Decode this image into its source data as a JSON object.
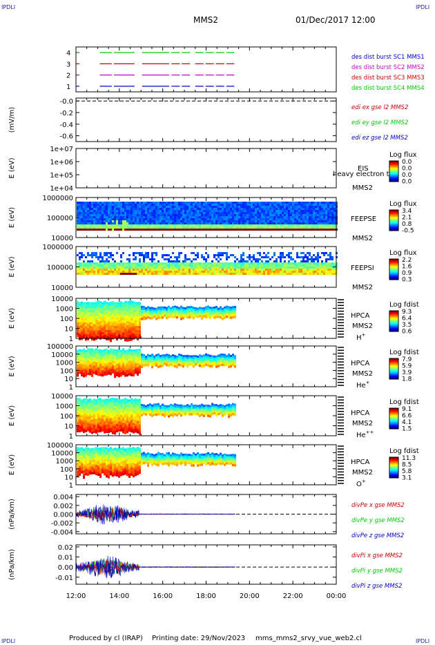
{
  "corner_logo": "IPDLI",
  "header": {
    "spacecraft": "MMS2",
    "datetime": "01/Dec/2017 12:00"
  },
  "footer": {
    "produced": "Produced by cl (IRAP)",
    "printing": "Printing date: 29/Nov/2023",
    "filename": "mms_mms2_srvy_vue_web2.cl"
  },
  "colors": {
    "blue": "#0000cc",
    "red": "#cc0000",
    "green": "#00cc00",
    "magenta": "#cc00cc",
    "black": "#000000"
  },
  "chart_data": [
    {
      "type": "line",
      "name": "burst-availability",
      "yticks": [
        "4",
        "3",
        "2",
        "1"
      ],
      "ylim": [
        0.5,
        4.5
      ],
      "x_hours_range": [
        12,
        24
      ],
      "series": [
        {
          "name": "des dist burst SC1 MMS1",
          "color": "#0000cc",
          "y": 1,
          "intervals": [
            [
              13.1,
              13.65
            ],
            [
              13.75,
              14.7
            ],
            [
              15.05,
              16.3
            ],
            [
              16.4,
              17.3
            ],
            [
              17.5,
              19.3
            ]
          ]
        },
        {
          "name": "des dist burst SC2 MMS2",
          "color": "#cc00cc",
          "y": 2,
          "intervals": [
            [
              13.1,
              13.65
            ],
            [
              13.75,
              14.7
            ],
            [
              15.05,
              16.3
            ],
            [
              16.4,
              17.3
            ],
            [
              17.5,
              19.3
            ]
          ]
        },
        {
          "name": "des dist burst SC3 MMS3",
          "color": "#cc0000",
          "y": 3,
          "intervals": [
            [
              13.1,
              13.65
            ],
            [
              13.75,
              14.7
            ],
            [
              15.05,
              16.3
            ],
            [
              16.4,
              17.3
            ],
            [
              17.5,
              19.3
            ]
          ]
        },
        {
          "name": "des dist burst SC4 MMS4",
          "color": "#00cc00",
          "y": 4,
          "intervals": [
            [
              13.1,
              13.65
            ],
            [
              13.75,
              14.7
            ],
            [
              15.05,
              16.3
            ],
            [
              16.4,
              17.3
            ],
            [
              17.5,
              19.3
            ]
          ]
        }
      ]
    },
    {
      "type": "line",
      "name": "edi-e-field",
      "ylabel": "(mV/m)",
      "yticks": [
        "-0.0",
        "-0.2",
        "-0.4",
        "-0.6"
      ],
      "ylim": [
        -0.7,
        0.05
      ],
      "series": [
        {
          "name": "edi ex gse l2 MMS2",
          "color": "#cc0000"
        },
        {
          "name": "edi ey gse l2 MMS2",
          "color": "#00cc00"
        },
        {
          "name": "edi ez gse l2 MMS2",
          "color": "#0000cc"
        }
      ]
    },
    {
      "type": "heatmap",
      "name": "eis-spectrogram",
      "ylabel": "E (eV)",
      "yticks": [
        "1e+07",
        "1e+06",
        "1e+05",
        "1e+04"
      ],
      "label_lines": [
        "EIS",
        "MMS2"
      ],
      "overlay_text": "heavy electron to",
      "colorbar": {
        "title": "Log flux",
        "ticks": [
          "0.0",
          "0.0",
          "0.0",
          "0.0"
        ]
      }
    },
    {
      "type": "heatmap",
      "name": "feeps-electron-spectrogram",
      "ylabel": "E (eV)",
      "yticks": [
        "1000000",
        "100000",
        "10000"
      ],
      "label_lines": [
        "FEEPSE",
        "MMS2"
      ],
      "colorbar": {
        "title": "Log flux",
        "ticks": [
          "3.4",
          "2.1",
          "0.8",
          "-0.5"
        ]
      }
    },
    {
      "type": "heatmap",
      "name": "feeps-ion-spectrogram",
      "ylabel": "E (eV)",
      "yticks": [
        "1000000",
        "100000",
        "10000"
      ],
      "label_lines": [
        "FEEPSI",
        "MMS2"
      ],
      "colorbar": {
        "title": "Log flux",
        "ticks": [
          "2.2",
          "1.6",
          "0.9",
          "0.3"
        ]
      }
    },
    {
      "type": "heatmap",
      "name": "hpca-h-spectrogram",
      "ylabel": "E (eV)",
      "yticks": [
        "10000",
        "1000",
        "100",
        "10",
        "1"
      ],
      "label_lines": [
        "HPCA",
        "MMS2"
      ],
      "species": "H",
      "species_sup": "+",
      "colorbar": {
        "title": "Log fdist",
        "ticks": [
          "9.3",
          "6.4",
          "3.5",
          "0.6"
        ]
      }
    },
    {
      "type": "heatmap",
      "name": "hpca-he-spectrogram",
      "ylabel": "E (eV)",
      "yticks": [
        "100000",
        "10000",
        "1000",
        "100",
        "10",
        "1"
      ],
      "label_lines": [
        "HPCA",
        "MMS2"
      ],
      "species": "He",
      "species_sup": "+",
      "colorbar": {
        "title": "Log fdist",
        "ticks": [
          "7.9",
          "5.9",
          "3.9",
          "1.8"
        ]
      }
    },
    {
      "type": "heatmap",
      "name": "hpca-he2-spectrogram",
      "ylabel": "E (eV)",
      "yticks": [
        "10000",
        "1000",
        "100",
        "10",
        "1"
      ],
      "label_lines": [
        "HPCA",
        "MMS2"
      ],
      "species": "He",
      "species_sup": "++",
      "colorbar": {
        "title": "Log fdist",
        "ticks": [
          "9.1",
          "6.6",
          "4.1",
          "1.5"
        ]
      }
    },
    {
      "type": "heatmap",
      "name": "hpca-o-spectrogram",
      "ylabel": "E (eV)",
      "yticks": [
        "100000",
        "10000",
        "1000",
        "100",
        "10",
        "1"
      ],
      "label_lines": [
        "HPCA",
        "MMS2"
      ],
      "species": "O",
      "species_sup": "+",
      "colorbar": {
        "title": "Log fdist",
        "ticks": [
          "11.3",
          "8.5",
          "5.8",
          "3.1"
        ]
      }
    },
    {
      "type": "line",
      "name": "div-pe",
      "ylabel": "(nPa/km)",
      "yticks": [
        "0.004",
        "0.002",
        "0.000",
        "-0.002",
        "-0.004"
      ],
      "ylim": [
        -0.0045,
        0.0045
      ],
      "series": [
        {
          "name": "divPe x gse MMS2",
          "color": "#cc0000"
        },
        {
          "name": "divPe y gse MMS2",
          "color": "#00cc00"
        },
        {
          "name": "divPe z gse MMS2",
          "color": "#0000cc"
        }
      ]
    },
    {
      "type": "line",
      "name": "div-pi",
      "ylabel": "(nPa/km)",
      "yticks": [
        "0.02",
        "0.01",
        "0.00",
        "-0.01"
      ],
      "ylim": [
        -0.017,
        0.022
      ],
      "series": [
        {
          "name": "divPi x gse MMS2",
          "color": "#cc0000"
        },
        {
          "name": "divPi y gse MMS2",
          "color": "#00cc00"
        },
        {
          "name": "divPi z gse MMS2",
          "color": "#0000cc"
        }
      ]
    },
    {
      "type": "axis",
      "name": "time-axis",
      "xticks": [
        "12:00",
        "14:00",
        "16:00",
        "18:00",
        "20:00",
        "22:00",
        "00:00"
      ]
    }
  ]
}
